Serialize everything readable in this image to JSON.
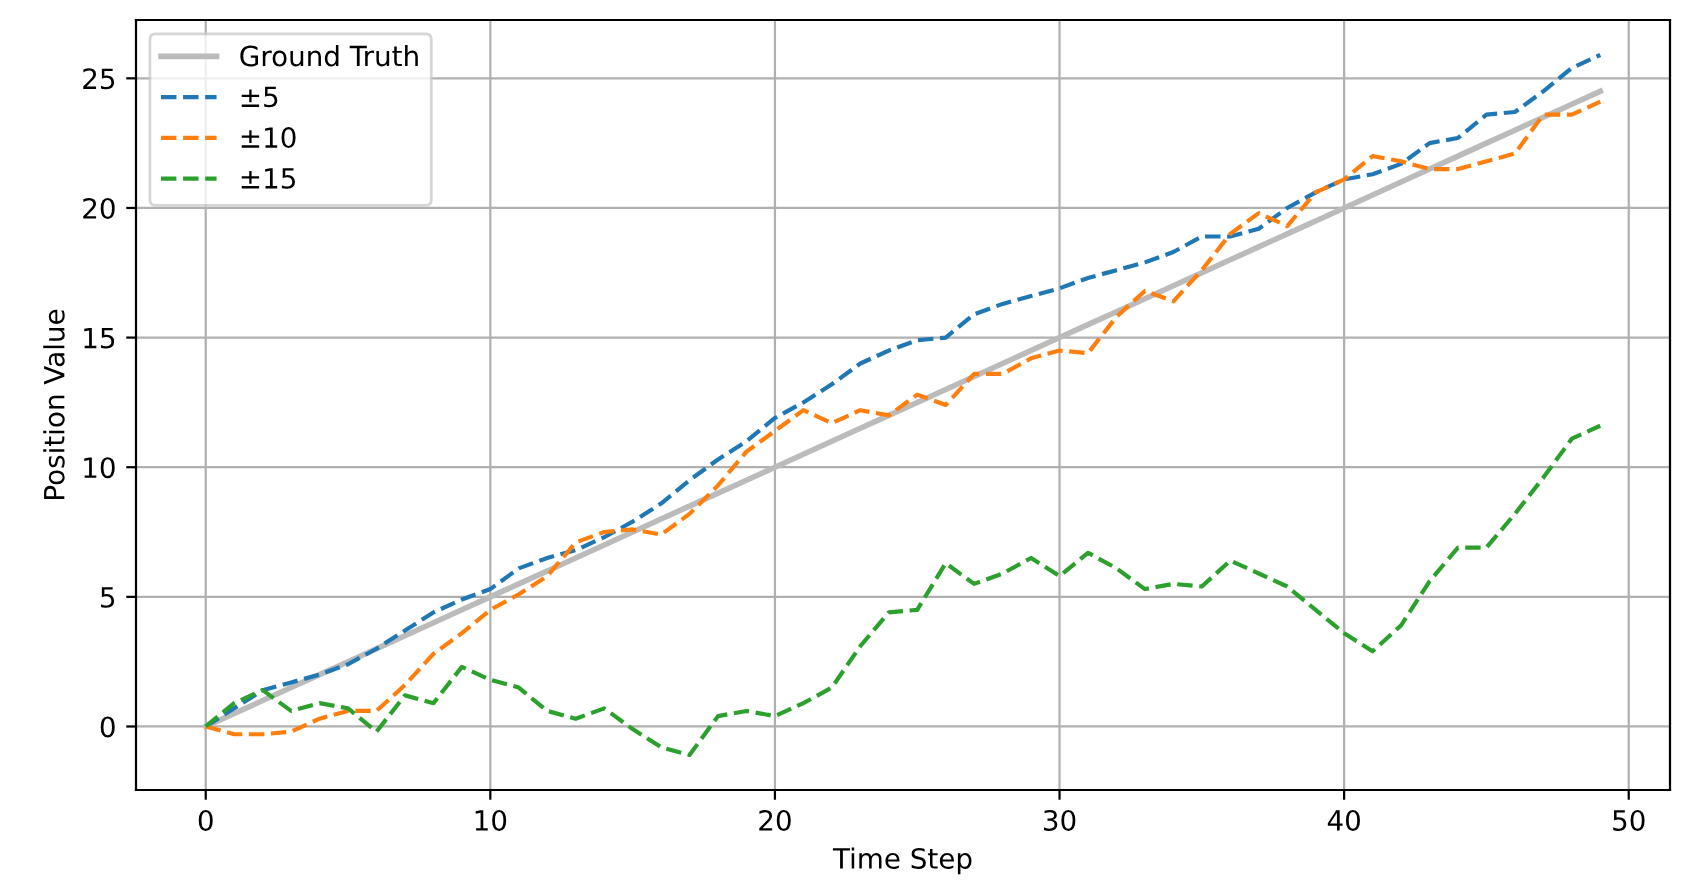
{
  "chart_data": {
    "type": "line",
    "xlabel": "Time Step",
    "ylabel": "Position Value",
    "x": [
      0,
      1,
      2,
      3,
      4,
      5,
      6,
      7,
      8,
      9,
      10,
      11,
      12,
      13,
      14,
      15,
      16,
      17,
      18,
      19,
      20,
      21,
      22,
      23,
      24,
      25,
      26,
      27,
      28,
      29,
      30,
      31,
      32,
      33,
      34,
      35,
      36,
      37,
      38,
      39,
      40,
      41,
      42,
      43,
      44,
      45,
      46,
      47,
      48,
      49
    ],
    "series": [
      {
        "name": "Ground Truth",
        "color": "#bbbbbb",
        "line_style": "solid",
        "values": [
          0,
          0.5,
          1,
          1.5,
          2,
          2.5,
          3,
          3.5,
          4,
          4.5,
          5,
          5.5,
          6,
          6.5,
          7,
          7.5,
          8,
          8.5,
          9,
          9.5,
          10,
          10.5,
          11,
          11.5,
          12,
          12.5,
          13,
          13.5,
          14,
          14.5,
          15,
          15.5,
          16,
          16.5,
          17,
          17.5,
          18,
          18.5,
          19,
          19.5,
          20,
          20.5,
          21,
          21.5,
          22,
          22.5,
          23,
          23.5,
          24,
          24.5
        ]
      },
      {
        "name": "±5",
        "color": "#1f77b4",
        "line_style": "dashed",
        "values": [
          0,
          0.7,
          1.4,
          1.7,
          2.0,
          2.4,
          3.0,
          3.7,
          4.4,
          4.9,
          5.3,
          6.1,
          6.5,
          6.8,
          7.3,
          7.9,
          8.6,
          9.5,
          10.3,
          11.0,
          11.9,
          12.5,
          13.2,
          14.0,
          14.5,
          14.9,
          15.0,
          15.9,
          16.3,
          16.6,
          16.9,
          17.3,
          17.6,
          17.9,
          18.3,
          18.9,
          18.9,
          19.2,
          20.0,
          20.6,
          21.1,
          21.3,
          21.7,
          22.5,
          22.7,
          23.6,
          23.7,
          24.5,
          25.4,
          25.9
        ]
      },
      {
        "name": "±10",
        "color": "#ff7f0e",
        "line_style": "dashed",
        "values": [
          0,
          -0.3,
          -0.3,
          -0.2,
          0.3,
          0.6,
          0.6,
          1.6,
          2.8,
          3.6,
          4.5,
          5.1,
          5.8,
          7.1,
          7.5,
          7.6,
          7.4,
          8.2,
          9.3,
          10.6,
          11.4,
          12.2,
          11.7,
          12.2,
          12.0,
          12.8,
          12.4,
          13.6,
          13.6,
          14.2,
          14.5,
          14.4,
          15.8,
          16.8,
          16.4,
          17.6,
          19.0,
          19.8,
          19.3,
          20.6,
          21.1,
          22.0,
          21.8,
          21.5,
          21.5,
          21.8,
          22.1,
          23.6,
          23.6,
          24.1
        ]
      },
      {
        "name": "±15",
        "color": "#2ca02c",
        "line_style": "dashed",
        "values": [
          0,
          0.9,
          1.4,
          0.6,
          0.9,
          0.7,
          -0.2,
          1.2,
          0.9,
          2.3,
          1.8,
          1.5,
          0.6,
          0.3,
          0.7,
          -0.1,
          -0.8,
          -1.1,
          0.4,
          0.6,
          0.4,
          0.9,
          1.5,
          3.1,
          4.4,
          4.5,
          6.3,
          5.5,
          5.9,
          6.5,
          5.8,
          6.7,
          6.1,
          5.3,
          5.5,
          5.4,
          6.4,
          5.9,
          5.4,
          4.5,
          3.6,
          2.9,
          3.9,
          5.6,
          6.9,
          6.9,
          8.2,
          9.6,
          11.1,
          11.6
        ]
      }
    ],
    "xlim": [
      -2.45,
      51.45
    ],
    "ylim": [
      -2.45,
      27.25
    ],
    "xticks": [
      0,
      10,
      20,
      30,
      40,
      50
    ],
    "yticks": [
      0,
      5,
      10,
      15,
      20,
      25
    ],
    "grid": true,
    "legend": "top left"
  }
}
